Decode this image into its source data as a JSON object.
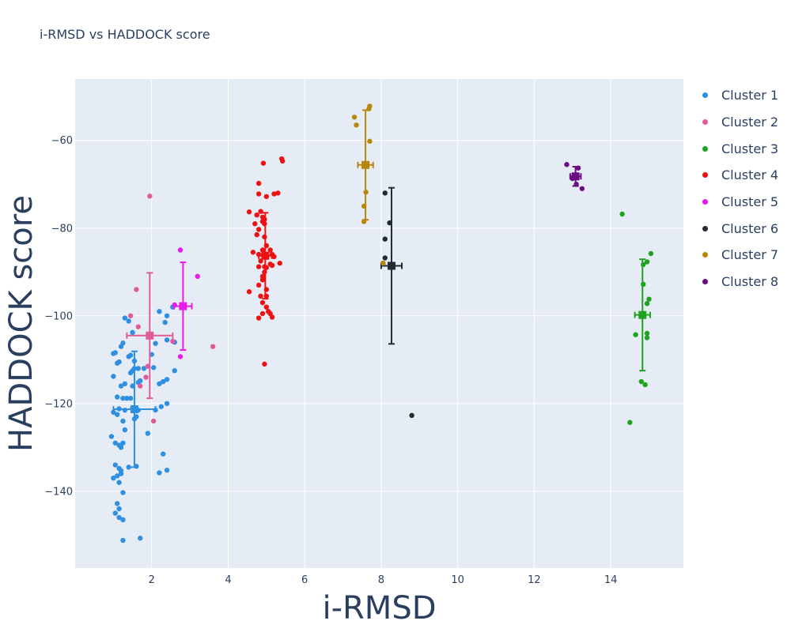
{
  "chart_data": {
    "type": "scatter",
    "title": "i-RMSD vs HADDOCK score",
    "xlabel": "i-RMSD",
    "ylabel": "HADDOCK score",
    "xlim": [
      0,
      15.9
    ],
    "ylim": [
      -157.5,
      -46
    ],
    "x_ticks": [
      2,
      4,
      6,
      8,
      10,
      12,
      14
    ],
    "y_ticks": [
      -140,
      -120,
      -100,
      -80,
      -60
    ],
    "grid": true,
    "legend_position": "right",
    "background": "#e5ecf6",
    "series": [
      {
        "name": "Cluster 1",
        "color": "#2f8fe0",
        "points": [
          [
            1.0,
            -108.6
          ],
          [
            1.05,
            -108.4
          ],
          [
            1.2,
            -107.0
          ],
          [
            1.25,
            -106.2
          ],
          [
            1.15,
            -110.5
          ],
          [
            1.1,
            -110.8
          ],
          [
            1.4,
            -109.3
          ],
          [
            1.45,
            -109.0
          ],
          [
            1.55,
            -110.3
          ],
          [
            1.0,
            -113.8
          ],
          [
            1.3,
            -115.5
          ],
          [
            1.5,
            -112.5
          ],
          [
            1.55,
            -112.0
          ],
          [
            1.65,
            -112.0
          ],
          [
            1.8,
            -112.0
          ],
          [
            2.05,
            -111.8
          ],
          [
            1.2,
            -116.0
          ],
          [
            1.5,
            -116.0
          ],
          [
            1.65,
            -115.2
          ],
          [
            1.7,
            -114.8
          ],
          [
            1.45,
            -113.0
          ],
          [
            1.1,
            -118.5
          ],
          [
            1.25,
            -118.8
          ],
          [
            1.35,
            -118.8
          ],
          [
            1.45,
            -118.8
          ],
          [
            1.0,
            -122.0
          ],
          [
            1.1,
            -122.5
          ],
          [
            1.15,
            -121.2
          ],
          [
            1.3,
            -121.5
          ],
          [
            1.5,
            -121.0
          ],
          [
            1.65,
            -121.5
          ],
          [
            1.25,
            -124.0
          ],
          [
            1.55,
            -123.5
          ],
          [
            1.6,
            -123.0
          ],
          [
            1.3,
            -126.0
          ],
          [
            1.9,
            -126.8
          ],
          [
            0.95,
            -127.5
          ],
          [
            1.05,
            -129.0
          ],
          [
            1.15,
            -129.5
          ],
          [
            1.25,
            -129.0
          ],
          [
            1.2,
            -130.0
          ],
          [
            1.05,
            -134.0
          ],
          [
            1.15,
            -134.8
          ],
          [
            1.2,
            -135.3
          ],
          [
            1.4,
            -134.5
          ],
          [
            1.6,
            -134.3
          ],
          [
            1.1,
            -136.5
          ],
          [
            1.2,
            -136.0
          ],
          [
            1.0,
            -137.0
          ],
          [
            1.15,
            -138.0
          ],
          [
            1.25,
            -140.3
          ],
          [
            1.1,
            -142.8
          ],
          [
            1.15,
            -144.0
          ],
          [
            1.05,
            -145.0
          ],
          [
            1.15,
            -146.0
          ],
          [
            1.25,
            -146.5
          ],
          [
            1.7,
            -150.7
          ],
          [
            1.25,
            -151.2
          ],
          [
            1.5,
            -103.8
          ],
          [
            1.4,
            -101.2
          ],
          [
            1.3,
            -100.5
          ],
          [
            2.2,
            -99.0
          ],
          [
            2.4,
            -100.0
          ],
          [
            2.35,
            -101.5
          ],
          [
            2.55,
            -98.0
          ],
          [
            2.6,
            -106.0
          ],
          [
            2.4,
            -105.5
          ],
          [
            2.1,
            -106.3
          ],
          [
            2.0,
            -108.8
          ],
          [
            2.6,
            -112.5
          ],
          [
            2.4,
            -114.5
          ],
          [
            2.3,
            -115.0
          ],
          [
            2.2,
            -115.5
          ],
          [
            2.4,
            -120.0
          ],
          [
            2.25,
            -120.7
          ],
          [
            2.1,
            -121.5
          ],
          [
            2.3,
            -131.5
          ],
          [
            2.4,
            -135.2
          ],
          [
            2.2,
            -135.8
          ]
        ],
        "mean": [
          1.55,
          -121.3
        ],
        "xerr": 0.55,
        "yerr": 13.2
      },
      {
        "name": "Cluster 2",
        "color": "#e05c96",
        "points": [
          [
            1.95,
            -72.7
          ],
          [
            1.6,
            -94.0
          ],
          [
            1.45,
            -100.0
          ],
          [
            1.65,
            -102.5
          ],
          [
            3.6,
            -107.0
          ],
          [
            1.9,
            -111.5
          ],
          [
            1.85,
            -114.0
          ],
          [
            1.7,
            -116.0
          ],
          [
            2.05,
            -124.0
          ],
          [
            2.55,
            -105.8
          ]
        ],
        "mean": [
          1.95,
          -104.5
        ],
        "xerr": 0.6,
        "yerr": 14.3
      },
      {
        "name": "Cluster 3",
        "color": "#1fa31f",
        "points": [
          [
            14.3,
            -76.8
          ],
          [
            15.05,
            -85.8
          ],
          [
            14.95,
            -87.7
          ],
          [
            14.85,
            -88.3
          ],
          [
            14.85,
            -92.8
          ],
          [
            15.0,
            -96.2
          ],
          [
            14.95,
            -97.2
          ],
          [
            14.85,
            -100.0
          ],
          [
            14.95,
            -104.0
          ],
          [
            14.65,
            -104.3
          ],
          [
            14.95,
            -105.0
          ],
          [
            14.8,
            -115.0
          ],
          [
            14.9,
            -115.7
          ],
          [
            14.5,
            -124.3
          ]
        ],
        "mean": [
          14.83,
          -99.8
        ],
        "xerr": 0.2,
        "yerr": 12.7
      },
      {
        "name": "Cluster 4",
        "color": "#ee1111",
        "points": [
          [
            5.4,
            -64.2
          ],
          [
            5.42,
            -64.7
          ],
          [
            4.92,
            -65.2
          ],
          [
            4.8,
            -69.8
          ],
          [
            4.8,
            -72.2
          ],
          [
            5.0,
            -72.8
          ],
          [
            5.2,
            -72.2
          ],
          [
            5.3,
            -72.0
          ],
          [
            4.55,
            -76.3
          ],
          [
            4.85,
            -76.2
          ],
          [
            4.75,
            -77.0
          ],
          [
            4.9,
            -77.5
          ],
          [
            4.95,
            -78.0
          ],
          [
            4.7,
            -79.0
          ],
          [
            4.9,
            -78.5
          ],
          [
            4.95,
            -79.0
          ],
          [
            4.8,
            -80.3
          ],
          [
            4.75,
            -81.5
          ],
          [
            4.95,
            -82.0
          ],
          [
            5.0,
            -84.0
          ],
          [
            4.9,
            -85.0
          ],
          [
            5.1,
            -85.0
          ],
          [
            4.65,
            -85.5
          ],
          [
            4.8,
            -86.0
          ],
          [
            5.0,
            -86.0
          ],
          [
            5.15,
            -86.0
          ],
          [
            5.2,
            -86.5
          ],
          [
            4.85,
            -87.5
          ],
          [
            5.1,
            -88.2
          ],
          [
            5.35,
            -88.0
          ],
          [
            4.8,
            -88.8
          ],
          [
            4.95,
            -88.8
          ],
          [
            5.0,
            -89.0
          ],
          [
            5.15,
            -88.5
          ],
          [
            4.95,
            -90.0
          ],
          [
            4.9,
            -91.0
          ],
          [
            4.9,
            -91.8
          ],
          [
            4.8,
            -93.0
          ],
          [
            5.0,
            -94.0
          ],
          [
            4.55,
            -94.5
          ],
          [
            4.85,
            -95.5
          ],
          [
            5.0,
            -95.5
          ],
          [
            4.9,
            -97.0
          ],
          [
            5.0,
            -98.0
          ],
          [
            5.05,
            -99.0
          ],
          [
            4.9,
            -99.5
          ],
          [
            5.1,
            -99.5
          ],
          [
            4.8,
            -100.5
          ],
          [
            5.15,
            -100.3
          ],
          [
            4.95,
            -111.0
          ]
        ],
        "mean": [
          4.97,
          -86.3
        ],
        "xerr": 0.17,
        "yerr": 9.8
      },
      {
        "name": "Cluster 5",
        "color": "#e81be8",
        "points": [
          [
            2.75,
            -85.0
          ],
          [
            3.2,
            -91.0
          ],
          [
            2.6,
            -97.5
          ],
          [
            2.75,
            -109.3
          ]
        ],
        "mean": [
          2.82,
          -97.8
        ],
        "xerr": 0.23,
        "yerr": 10.0
      },
      {
        "name": "Cluster 6",
        "color": "#222a33",
        "points": [
          [
            8.1,
            -72.0
          ],
          [
            8.22,
            -78.8
          ],
          [
            8.1,
            -82.5
          ],
          [
            8.1,
            -86.8
          ],
          [
            8.05,
            -88.0
          ],
          [
            8.8,
            -122.7
          ]
        ],
        "mean": [
          8.27,
          -88.6
        ],
        "xerr": 0.27,
        "yerr": 17.8
      },
      {
        "name": "Cluster 7",
        "color": "#b8860b",
        "points": [
          [
            7.7,
            -52.2
          ],
          [
            7.68,
            -52.8
          ],
          [
            7.3,
            -54.7
          ],
          [
            7.35,
            -56.5
          ],
          [
            7.7,
            -60.2
          ],
          [
            7.6,
            -71.8
          ],
          [
            7.55,
            -75.0
          ],
          [
            7.55,
            -78.5
          ],
          [
            8.05,
            -88.0
          ]
        ],
        "mean": [
          7.59,
          -65.6
        ],
        "xerr": 0.2,
        "yerr": 12.5
      },
      {
        "name": "Cluster 8",
        "color": "#6a0d82",
        "points": [
          [
            12.85,
            -65.5
          ],
          [
            13.15,
            -66.3
          ],
          [
            13.1,
            -68.3
          ],
          [
            13.0,
            -68.7
          ],
          [
            13.1,
            -70.0
          ],
          [
            13.25,
            -71.0
          ]
        ],
        "mean": [
          13.08,
          -68.2
        ],
        "xerr": 0.14,
        "yerr": 2.2
      }
    ]
  }
}
